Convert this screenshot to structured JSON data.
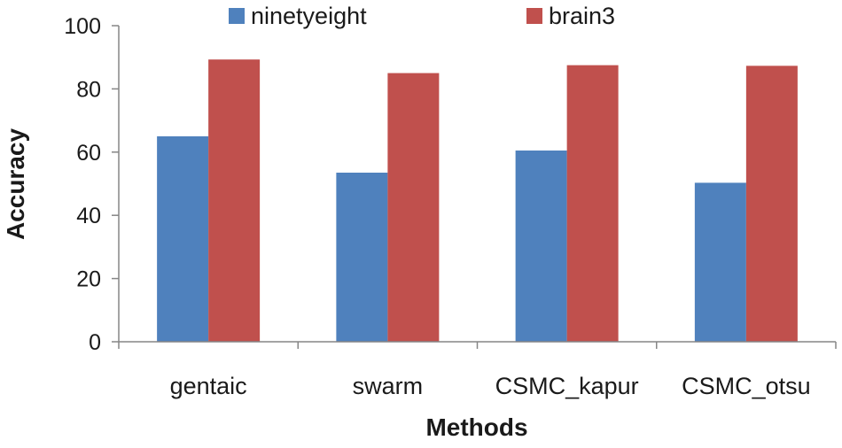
{
  "chart_data": {
    "type": "bar",
    "title": "",
    "xlabel": "Methods",
    "ylabel": "Accuracy",
    "ylim": [
      0,
      100
    ],
    "yticks": [
      "0",
      "20",
      "40",
      "60",
      "80",
      "100"
    ],
    "grid": false,
    "legend_position": "top",
    "categories": [
      "gentaic",
      "swarm",
      "CSMC_kapur",
      "CSMC_otsu"
    ],
    "series": [
      {
        "name": "ninetyeight",
        "color": "#4F81BD",
        "values": [
          65,
          53.5,
          60.5,
          50.3
        ]
      },
      {
        "name": "brain3",
        "color": "#C0504D",
        "values": [
          89.3,
          85,
          87.5,
          87.3
        ]
      }
    ]
  }
}
